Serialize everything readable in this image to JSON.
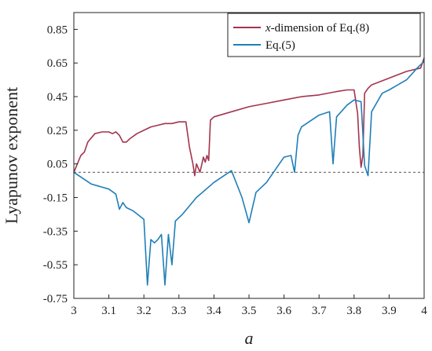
{
  "chart_data": {
    "type": "line",
    "xlabel": "a",
    "ylabel": "Lyapunov exponent",
    "xlim": [
      3,
      4
    ],
    "ylim": [
      -0.75,
      0.95
    ],
    "x_ticks": [
      "3",
      "3.1",
      "3.2",
      "3.3",
      "3.4",
      "3.5",
      "3.6",
      "3.7",
      "3.8",
      "3.9",
      "4"
    ],
    "y_ticks": [
      "0.85",
      "0.65",
      "0.45",
      "0.25",
      "0.05",
      "-0.15",
      "-0.35",
      "-0.55",
      "-0.75"
    ],
    "reference_line": {
      "y": 0,
      "style": "dashed"
    },
    "legend": {
      "placement": "top-right",
      "entries": [
        {
          "prefix": "x",
          "rest": "-dimension of Eq.(8)"
        },
        {
          "prefix": "",
          "rest": "Eq.(5)"
        }
      ]
    },
    "series": [
      {
        "name": "x-dimension of Eq.(8)",
        "color": "#a3344e",
        "x": [
          3.0,
          3.01,
          3.02,
          3.03,
          3.04,
          3.06,
          3.08,
          3.1,
          3.11,
          3.12,
          3.13,
          3.14,
          3.15,
          3.16,
          3.18,
          3.2,
          3.22,
          3.24,
          3.26,
          3.28,
          3.3,
          3.31,
          3.32,
          3.33,
          3.34,
          3.345,
          3.35,
          3.36,
          3.37,
          3.375,
          3.38,
          3.385,
          3.39,
          3.4,
          3.45,
          3.5,
          3.55,
          3.6,
          3.65,
          3.7,
          3.75,
          3.78,
          3.8,
          3.81,
          3.815,
          3.82,
          3.825,
          3.83,
          3.84,
          3.85,
          3.9,
          3.95,
          3.99,
          4.0
        ],
        "y": [
          0.0,
          0.05,
          0.1,
          0.12,
          0.18,
          0.23,
          0.24,
          0.24,
          0.23,
          0.24,
          0.22,
          0.18,
          0.18,
          0.2,
          0.23,
          0.25,
          0.27,
          0.28,
          0.29,
          0.29,
          0.3,
          0.3,
          0.3,
          0.15,
          0.05,
          -0.02,
          0.05,
          0.0,
          0.09,
          0.06,
          0.1,
          0.07,
          0.31,
          0.33,
          0.36,
          0.39,
          0.41,
          0.43,
          0.45,
          0.46,
          0.48,
          0.49,
          0.49,
          0.35,
          0.15,
          0.03,
          0.1,
          0.47,
          0.5,
          0.52,
          0.56,
          0.6,
          0.62,
          0.68
        ]
      },
      {
        "name": "Eq.(5)",
        "color": "#1f7fb8",
        "x": [
          3.0,
          3.05,
          3.1,
          3.12,
          3.13,
          3.14,
          3.15,
          3.17,
          3.2,
          3.21,
          3.22,
          3.23,
          3.24,
          3.25,
          3.26,
          3.27,
          3.28,
          3.29,
          3.3,
          3.31,
          3.35,
          3.4,
          3.45,
          3.48,
          3.5,
          3.52,
          3.55,
          3.6,
          3.62,
          3.63,
          3.64,
          3.65,
          3.7,
          3.73,
          3.74,
          3.75,
          3.78,
          3.8,
          3.82,
          3.83,
          3.84,
          3.85,
          3.88,
          3.9,
          3.95,
          3.98,
          4.0
        ],
        "y": [
          0.0,
          -0.07,
          -0.1,
          -0.13,
          -0.22,
          -0.18,
          -0.21,
          -0.23,
          -0.28,
          -0.67,
          -0.4,
          -0.42,
          -0.4,
          -0.37,
          -0.67,
          -0.37,
          -0.55,
          -0.29,
          -0.27,
          -0.25,
          -0.15,
          -0.06,
          0.01,
          -0.15,
          -0.3,
          -0.12,
          -0.06,
          0.09,
          0.1,
          0.0,
          0.22,
          0.27,
          0.34,
          0.36,
          0.05,
          0.33,
          0.4,
          0.43,
          0.42,
          0.04,
          -0.02,
          0.36,
          0.47,
          0.49,
          0.55,
          0.62,
          0.66
        ]
      }
    ]
  }
}
